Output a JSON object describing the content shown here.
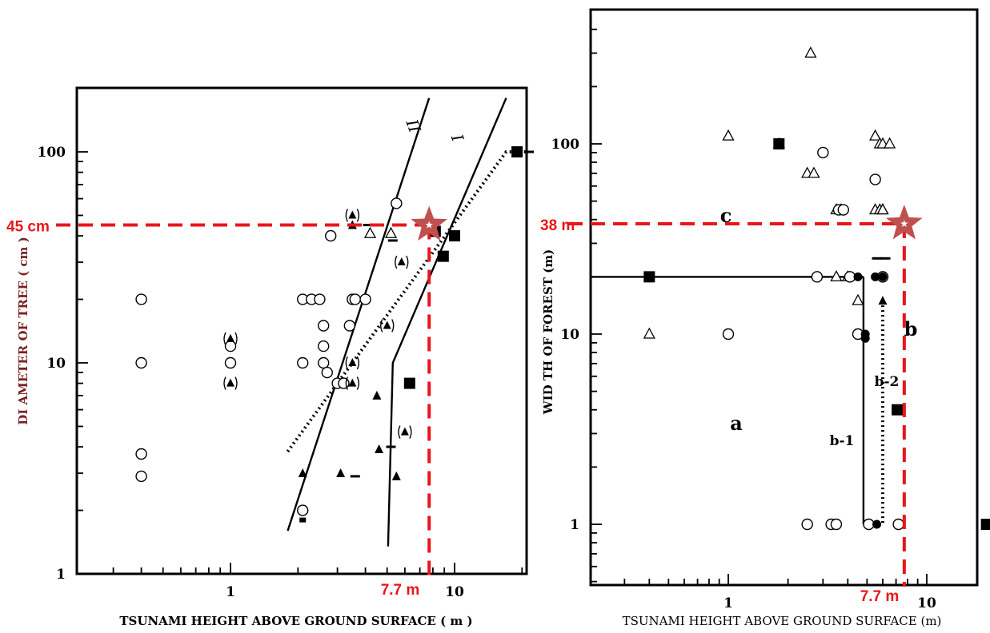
{
  "chart_data": [
    {
      "type": "scatter",
      "xlabel": "TSUNAMI HEIGHT ABOVE GROUND SURFACE  ( m )",
      "ylabel": "DI AMETER OF TREE  ( cm )",
      "x_scale": "log",
      "y_scale": "log",
      "xlim": [
        0.15,
        25
      ],
      "ylim": [
        1,
        200
      ],
      "x_tick_labels": [
        "1",
        "10"
      ],
      "y_tick_labels": [
        "1",
        "10",
        "100"
      ],
      "line_labels": [
        "II",
        "I"
      ],
      "annotation_y_label": "45 cm",
      "annotation_x_label": "7.7 m",
      "annotation_color": "#e8161b",
      "star_color": "#c0504d",
      "series": [
        {
          "marker": "open-circle",
          "points": [
            [
              0.4,
              20
            ],
            [
              0.4,
              10
            ],
            [
              0.4,
              3.7
            ],
            [
              0.4,
              2.9
            ],
            [
              1,
              12
            ],
            [
              1,
              10
            ],
            [
              2.1,
              2
            ],
            [
              2.1,
              10
            ],
            [
              2.1,
              20
            ],
            [
              2.3,
              20
            ],
            [
              2.5,
              20
            ],
            [
              2.6,
              15
            ],
            [
              2.6,
              12
            ],
            [
              2.6,
              10
            ],
            [
              2.7,
              9
            ],
            [
              2.8,
              40
            ],
            [
              3,
              8
            ],
            [
              3.2,
              8
            ],
            [
              3.4,
              15
            ],
            [
              3.5,
              20
            ],
            [
              3.6,
              20
            ],
            [
              4,
              20
            ],
            [
              5.5,
              57
            ]
          ]
        },
        {
          "marker": "bracketed-filled-triangle",
          "points": [
            [
              1,
              13
            ],
            [
              1,
              8
            ],
            [
              3.5,
              50
            ],
            [
              3.5,
              10
            ],
            [
              3.5,
              8
            ],
            [
              5,
              15
            ],
            [
              5.8,
              30
            ],
            [
              6,
              4.7
            ]
          ]
        },
        {
          "marker": "filled-triangle",
          "points": [
            [
              2.1,
              3
            ],
            [
              3.1,
              3
            ],
            [
              3.5,
              45
            ],
            [
              4.5,
              7
            ],
            [
              4.6,
              3.9
            ],
            [
              5.5,
              2.9
            ]
          ]
        },
        {
          "marker": "open-triangle",
          "points": [
            [
              4.2,
              41
            ],
            [
              5.2,
              41
            ]
          ]
        },
        {
          "marker": "filled-square",
          "points": [
            [
              6.3,
              8
            ],
            [
              8.2,
              42
            ],
            [
              8.9,
              32
            ],
            [
              10,
              40
            ],
            [
              19,
              100
            ]
          ]
        },
        {
          "marker": "dash",
          "points": [
            [
              3.6,
              2.9
            ],
            [
              4.1,
              45
            ],
            [
              5.2,
              4
            ],
            [
              5.3,
              38
            ],
            [
              21.5,
              100
            ]
          ]
        },
        {
          "marker": "filled-square-small",
          "points": [
            [
              2.1,
              1.8
            ]
          ]
        }
      ],
      "lines": [
        {
          "name": "II",
          "style": "solid",
          "points": [
            [
              1.8,
              1.6
            ],
            [
              7.7,
              180
            ]
          ]
        },
        {
          "name": "I",
          "style": "solid",
          "points": [
            [
              5.05,
              1.35
            ],
            [
              5.3,
              10
            ],
            [
              17,
              180
            ]
          ]
        },
        {
          "name": "",
          "style": "dotted",
          "points": [
            [
              1.8,
              3.8
            ],
            [
              17,
              100
            ],
            [
              21,
              100
            ]
          ]
        }
      ],
      "annotation": {
        "x": 7.7,
        "y": 45
      }
    },
    {
      "type": "scatter",
      "xlabel": "TSUNAMI HEIGHT ABOVE GROUND SURFACE (m)",
      "ylabel": "WID TH OF FOREST  (m)",
      "x_scale": "log",
      "y_scale": "log",
      "xlim": [
        0.15,
        25
      ],
      "ylim": [
        0.5,
        500
      ],
      "x_tick_labels": [
        "1",
        "10"
      ],
      "y_tick_labels": [
        "1",
        "10",
        "100"
      ],
      "region_labels": [
        "a",
        "b",
        "c",
        "b-1",
        "b-2"
      ],
      "annotation_y_label": "38 m",
      "annotation_x_label": "7.7 m",
      "annotation_color": "#e8161b",
      "star_color": "#c0504d",
      "series": [
        {
          "marker": "open-triangle",
          "points": [
            [
              0.4,
              10
            ],
            [
              1,
              110
            ],
            [
              1.8,
              100
            ],
            [
              2.5,
              70
            ],
            [
              2.6,
              300
            ],
            [
              2.7,
              70
            ],
            [
              3.5,
              20
            ],
            [
              3.5,
              45
            ],
            [
              3.7,
              45
            ],
            [
              4,
              20
            ],
            [
              4.5,
              15
            ],
            [
              5.5,
              110
            ],
            [
              5.5,
              45
            ],
            [
              5.8,
              45
            ],
            [
              5.8,
              100
            ],
            [
              6,
              100
            ],
            [
              6,
              45
            ],
            [
              6.5,
              100
            ],
            [
              6,
              45
            ]
          ]
        },
        {
          "marker": "open-circle",
          "points": [
            [
              1,
              10
            ],
            [
              2.8,
              20
            ],
            [
              3,
              90
            ],
            [
              3.6,
              45
            ],
            [
              3.8,
              45
            ],
            [
              4.1,
              20
            ],
            [
              4.5,
              10
            ],
            [
              5.5,
              65
            ],
            [
              6,
              20
            ],
            [
              2.5,
              1
            ],
            [
              3.3,
              1
            ],
            [
              3.5,
              1
            ],
            [
              5.1,
              1
            ],
            [
              7.2,
              1
            ]
          ]
        },
        {
          "marker": "filled-circle",
          "points": [
            [
              4.5,
              20
            ],
            [
              4.9,
              10
            ],
            [
              4.9,
              9.5
            ],
            [
              5.5,
              20
            ],
            [
              6,
              20
            ],
            [
              5.6,
              1
            ]
          ]
        },
        {
          "marker": "filled-square",
          "points": [
            [
              0.4,
              20
            ],
            [
              1.8,
              100
            ],
            [
              7.1,
              4
            ],
            [
              20,
              1
            ]
          ]
        },
        {
          "marker": "filled-triangle",
          "points": [
            [
              6,
              15
            ]
          ]
        },
        {
          "marker": "dash",
          "points": [
            [
              5.6,
              25
            ],
            [
              6.2,
              25
            ],
            [
              22.5,
              1
            ]
          ]
        }
      ],
      "lines": [
        {
          "name": "a-horizontal",
          "style": "solid",
          "points": [
            [
              0.2,
              20
            ],
            [
              4.8,
              20
            ]
          ]
        },
        {
          "name": "b-1",
          "style": "solid",
          "points": [
            [
              4.8,
              20
            ],
            [
              4.8,
              1
            ]
          ]
        },
        {
          "name": "b-2",
          "style": "dotted",
          "points": [
            [
              6,
              15
            ],
            [
              6,
              1
            ]
          ]
        }
      ],
      "annotation": {
        "x": 7.7,
        "y": 38
      }
    }
  ]
}
